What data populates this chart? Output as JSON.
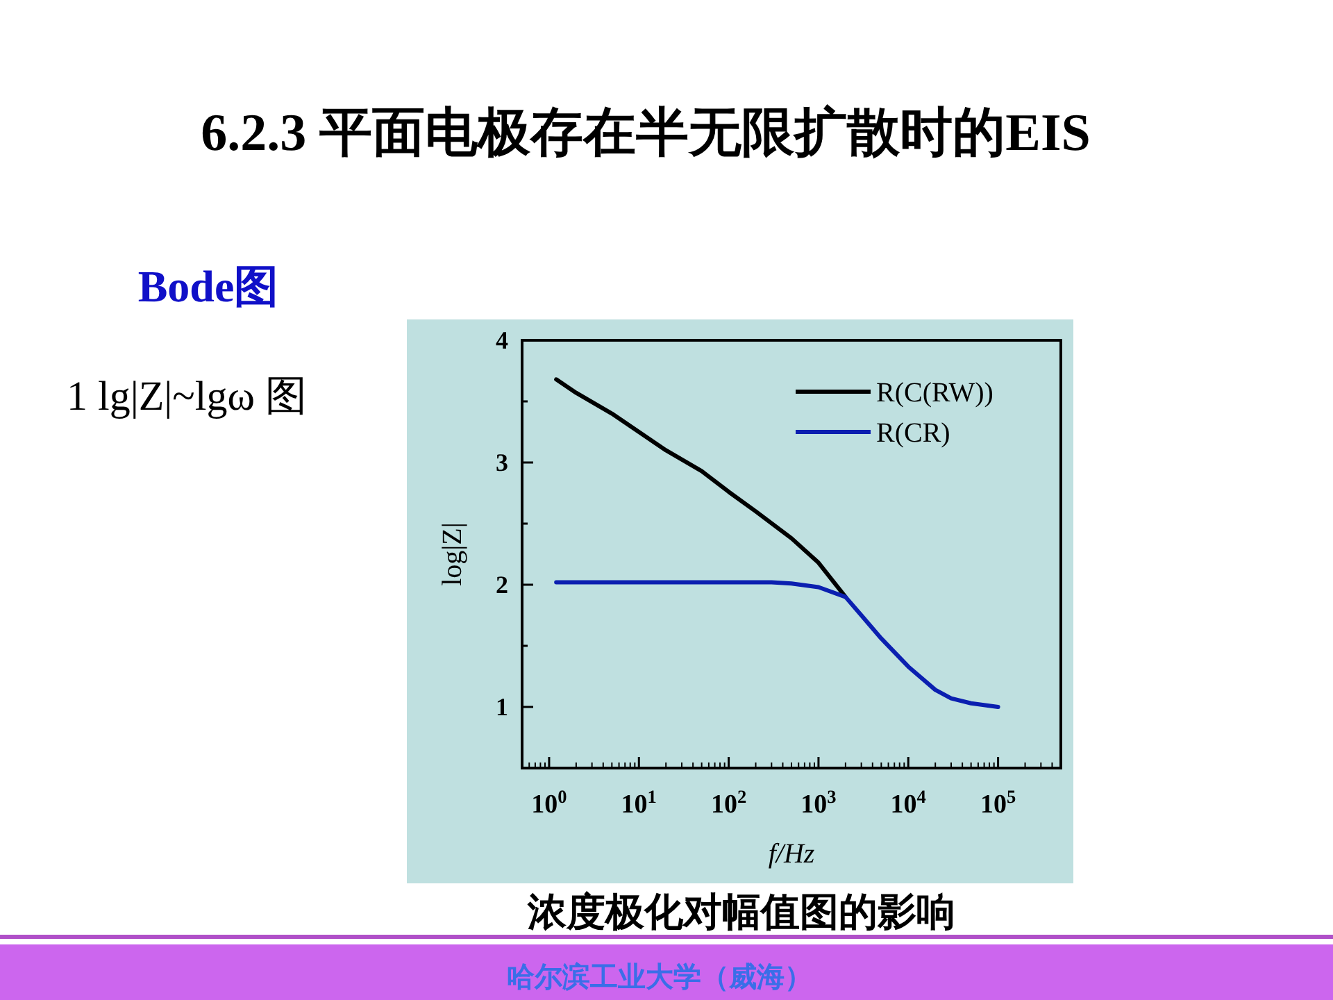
{
  "chart_data": {
    "type": "line",
    "title": "6.2.3 平面电极存在半无限扩散时的EIS",
    "subtitle": "Bode图",
    "annotations": [
      "1 lg|Z|~lgω 图",
      "浓度极化对幅值图的影响",
      "哈尔滨工业大学（威海）"
    ],
    "xlabel": "f/Hz",
    "ylabel": "log|Z|",
    "log": "x",
    "legend": "top right",
    "grid": false,
    "line_style": "solid",
    "marker": "none",
    "xlim": [
      0.5,
      500000
    ],
    "ylim": [
      0.5,
      4
    ],
    "xticks": [
      {
        "value": 1,
        "label": "10$^{0}$"
      },
      {
        "value": 10,
        "label": "10$^{1}$"
      },
      {
        "value": 100,
        "label": "10$^{2}$"
      },
      {
        "value": 1000,
        "label": "10$^{3}$"
      },
      {
        "value": 10000,
        "label": "10$^{4}$"
      },
      {
        "value": 100000,
        "label": "10$^{5}$"
      }
    ],
    "yticks": [
      {
        "value": 0.5,
        "label": null
      },
      1,
      {
        "value": 1.5,
        "label": null
      },
      2,
      {
        "value": 2.5,
        "label": null
      },
      3,
      {
        "value": 3.5,
        "label": null
      },
      4
    ],
    "series": [
      {
        "name": "R(C(RW))",
        "color": "#000000",
        "x": [
          1.2,
          2,
          5,
          10,
          20,
          50,
          100,
          200,
          500,
          1000,
          2000
        ],
        "values": [
          3.68,
          3.57,
          3.4,
          3.25,
          3.1,
          2.93,
          2.76,
          2.6,
          2.38,
          2.18,
          1.9
        ]
      },
      {
        "name": "R(CR)",
        "color": "#0b1fb0",
        "x": [
          1.2,
          10,
          100,
          300,
          500,
          1000,
          2000,
          3000,
          5000,
          10000,
          20000,
          30000,
          50000,
          100000
        ],
        "values": [
          2.02,
          2.02,
          2.02,
          2.02,
          2.01,
          1.98,
          1.9,
          1.75,
          1.56,
          1.33,
          1.14,
          1.07,
          1.03,
          1.0
        ]
      }
    ]
  }
}
